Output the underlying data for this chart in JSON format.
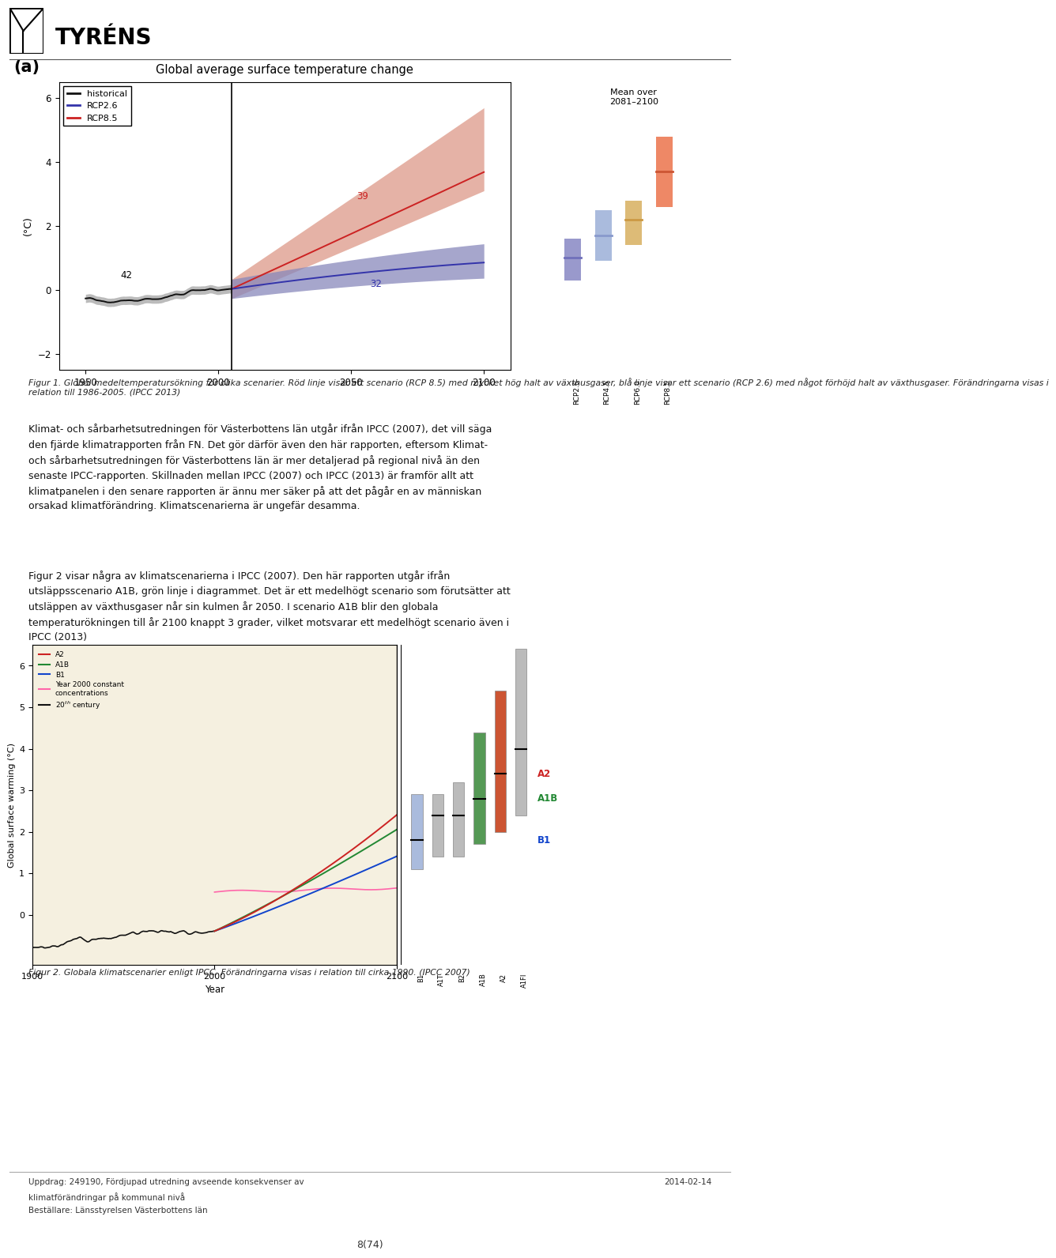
{
  "page_width": 9.6,
  "page_height": 16.19,
  "background_color": "#ffffff",
  "label_a": "(a)",
  "chart1_title": "Global average surface temperature change",
  "chart1_ylabel": "(°C)",
  "chart1_xticks": [
    1950,
    2000,
    2050,
    2100
  ],
  "chart1_yticks": [
    -2.0,
    0.0,
    2.0,
    4.0,
    6.0
  ],
  "chart1_ylim": [
    -2.5,
    6.5
  ],
  "chart1_xlim": [
    1940,
    2110
  ],
  "chart1_annotation_42": "42",
  "chart1_annotation_39": "39",
  "chart1_annotation_32": "32",
  "legend_historical": "historical",
  "legend_rcp26": "RCP2.6",
  "legend_rcp85": "RCP8.5",
  "mean_label": "Mean over\n2081–2100",
  "rcp_bar_labels": [
    "RCP2.6",
    "RCP4.5",
    "RCP6.0",
    "RCP8.5"
  ],
  "rcp_bar_colors_dark": [
    "#7070bb",
    "#8899cc",
    "#cc9944",
    "#cc5533"
  ],
  "rcp_bar_colors_light": [
    "#9999cc",
    "#aabbdd",
    "#ddbb77",
    "#ee8866"
  ],
  "rcp_bar_mins": [
    0.3,
    0.9,
    1.4,
    2.6
  ],
  "rcp_bar_maxs": [
    1.6,
    2.5,
    2.8,
    4.8
  ],
  "rcp_bar_means": [
    1.0,
    1.7,
    2.2,
    3.7
  ],
  "figcaption1_line1": "Figur 1. Global medeltemperatursökning för olika scenarier. Röd linje visar ett scenario (RCP 8.5) med mycket hög halt av växthusgaser, blå linje visar ett scenario (RCP 2.6) med något förhöjd halt av växthusgaser. Förändringarna visas i",
  "figcaption1_line2": "relation till 1986-2005. (IPCC 2013)",
  "body_para1": "Klimat- och sårbarhetsutredningen för Västerbottens län utgår ifrån IPCC (2007), det vill säga den fjärde klimatrapporten från FN. Det gör därför även den här rapporten, eftersom Klimat- och sårbarhetsutredningen för Västerbottens län är mer detaljerad på regional nivå än den senaste IPCC-rapporten. Skillnaden mellan IPCC (2007) och IPCC (2013) är framför allt att klimatpanelen i den senare rapporten är ännu mer säker på att det pågår en av människan orsakad klimatförändring. Klimatscenarierna är ungefär desamma.",
  "body_para2": "Figur 2 visar några av klimatscenarierna i IPCC (2007). Den här rapporten utgår ifrån utsläppsscenario A1B, grön linje i diagrammet. Det är ett medelhögt scenario som förutsätter att utsläppen av växthusgaser når sin kulmen år 2050. I scenario A1B blir den globala temperaturökningen till år 2100 knappt 3 grader, vilket motsvarar ett medelhögt scenario även i IPCC (2013)",
  "figcaption2": "Figur 2. Globala klimatscenarier enligt IPCC. Förändringarna visas i relation till cirka 1990. (IPCC 2007)",
  "footer_left1": "Uppdrag: 249190, Fördjupad utredning avseende konsekvenser av",
  "footer_left2": "klimatförändringar på kommunal nivå",
  "footer_left3": "Beställare: Länsstyrelsen Västerbottens län",
  "footer_right": "2014-02-14",
  "page_number": "8(74)",
  "hist_color": "#111111",
  "rcp26_color": "#3333aa",
  "rcp85_color": "#cc2222",
  "hist_band_color": "#aaaaaa",
  "rcp26_band_color": "#8888bb",
  "rcp85_band_color": "#dd9988",
  "chart2_bg": "#f5f0e0",
  "sres_a2_color": "#cc2222",
  "sres_a1b_color": "#228833",
  "sres_b1_color": "#1144cc",
  "sres_yr2000_color": "#ff66aa",
  "sres_20c_color": "#111111"
}
